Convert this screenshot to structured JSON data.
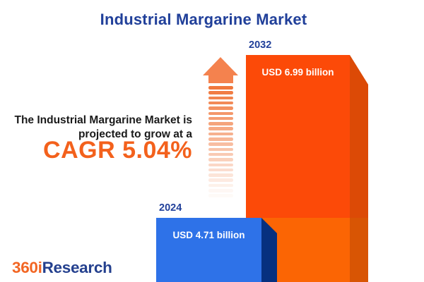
{
  "title": "Industrial Margarine Market",
  "chart_data": {
    "type": "bar",
    "title": "Industrial Margarine Market",
    "categories": [
      "2024",
      "2032"
    ],
    "values": [
      4.71,
      6.99
    ],
    "unit": "USD billion",
    "value_labels": [
      "USD 4.71 billion",
      "USD 6.99 billion"
    ],
    "cagr_percent": 5.04,
    "annotation": "The Industrial Margarine Market is projected to grow at a CAGR 5.04%",
    "orientation": "vertical",
    "legend": "none",
    "axes": "none",
    "style": "3d-infographic-bars"
  },
  "description": {
    "line1": "The Industrial Margarine Market is",
    "line2": "projected to grow at a",
    "cagr": "CAGR 5.04%"
  },
  "bars": [
    {
      "year": "2024",
      "value_label": "USD 4.71 billion",
      "front_color": "#2E72E8",
      "side_color": "#06307F"
    },
    {
      "year": "2032",
      "value_label": "USD 6.99 billion",
      "front_color": "#FC4A08",
      "side_color": "#DC4A06"
    }
  ],
  "arrow": {
    "color": "#F4824E",
    "stripe_color": "#F0773C",
    "stripe_count": 22
  },
  "logo": {
    "prefix": "360i",
    "suffix": "Research",
    "prefix_color": "#F26522",
    "suffix_color": "#24408E"
  },
  "colors": {
    "title": "#21409A",
    "body_text": "#1A1A1A",
    "cagr": "#F3611C",
    "background": "#FFFFFF"
  }
}
